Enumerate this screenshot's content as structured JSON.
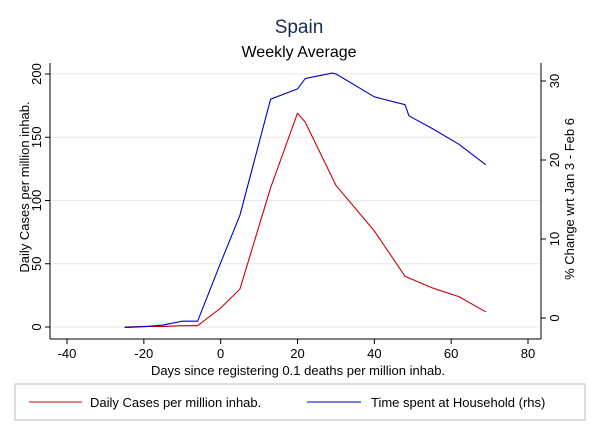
{
  "chart_data": {
    "type": "line",
    "title": "Spain",
    "subtitle": "Weekly Average",
    "xlabel": "Days since registering 0.1 deaths per million inhab.",
    "ylabel_left": "Daily Cases per million inhab.",
    "ylabel_right": "% Change wrt Jan 3 - Feb 6",
    "xlim": [
      -40,
      80
    ],
    "ylim_left": [
      0,
      200
    ],
    "ylim_right": [
      0,
      30
    ],
    "x_ticks": [
      "-40",
      "-20",
      "0",
      "20",
      "40",
      "60",
      "80"
    ],
    "y_ticks_left": [
      "0",
      "50",
      "100",
      "150",
      "200"
    ],
    "y_ticks_right": [
      "0",
      "10",
      "20",
      "30"
    ],
    "grid": "horizontal",
    "legend_position": "bottom",
    "series": [
      {
        "name": "Daily Cases per million inhab.",
        "axis": "left",
        "color": "#cc0000",
        "x": [
          -25,
          -20,
          -15,
          -10,
          -6,
          0,
          5,
          13,
          20,
          22,
          30,
          40,
          48,
          55,
          62,
          69
        ],
        "y": [
          0,
          0.5,
          0.5,
          1,
          1,
          15,
          30,
          110,
          169,
          162,
          112,
          76,
          40,
          31,
          24,
          12
        ]
      },
      {
        "name": "Time spent at Household (rhs)",
        "axis": "right",
        "color": "#0000cc",
        "x": [
          -25,
          -20,
          -15,
          -10,
          -6,
          0,
          5,
          13,
          20,
          22,
          29,
          30,
          40,
          48,
          49,
          55,
          62,
          69
        ],
        "y": [
          -1.2,
          -1.1,
          -0.9,
          -0.4,
          -0.4,
          7,
          13,
          27.7,
          29,
          30.3,
          31,
          30.9,
          28,
          27,
          25.6,
          24,
          22,
          19.4
        ]
      }
    ]
  }
}
